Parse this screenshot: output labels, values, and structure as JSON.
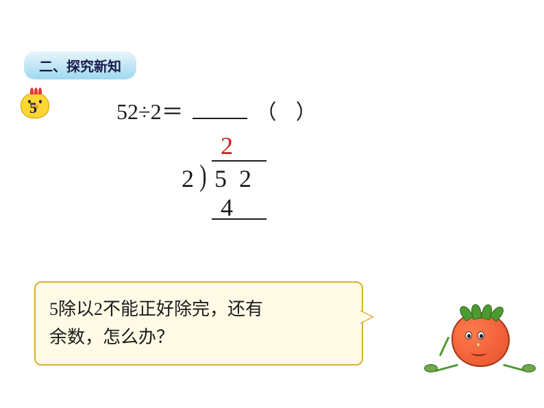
{
  "section": {
    "title": "二、探究新知"
  },
  "example": {
    "number": "5",
    "equation_left": "52÷2＝",
    "paren_open": "（",
    "paren_close": "）"
  },
  "long_division": {
    "quotient": "2",
    "quotient_color": "#d01818",
    "divisor": "2",
    "dividend": "52",
    "subtraction": "4",
    "line_color": "#1a1a1a"
  },
  "speech": {
    "text_line1": "5除以2不能正好除完，还有",
    "text_line2": "余数，怎么办？",
    "background_color": "#fffae6",
    "border_color": "#d4b030"
  },
  "characters": {
    "chick_color": "#ffd633",
    "chick_comb_color": "#e63939",
    "tomato_color": "#e8502a",
    "tomato_leaf_color": "#4d9933"
  }
}
